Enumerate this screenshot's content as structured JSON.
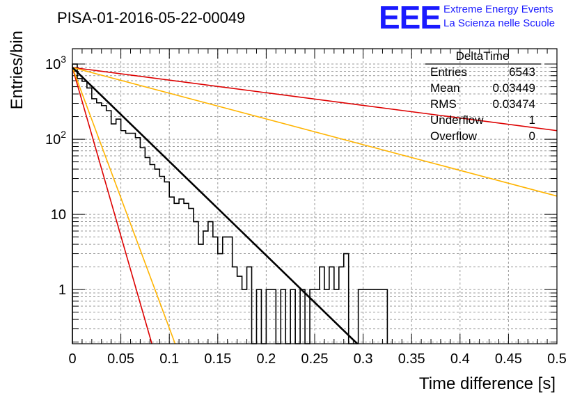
{
  "header": {
    "title": "PISA-01-2016-05-22-00049",
    "logo_text": "EEE",
    "logo_line1": "Extreme Energy Events",
    "logo_line2": "La Scienza nelle Scuole"
  },
  "stats_box": {
    "name": "DeltaTime",
    "rows": [
      {
        "label": "Entries",
        "value": "6543"
      },
      {
        "label": "Mean",
        "value": "0.03449"
      },
      {
        "label": "RMS",
        "value": "0.03474"
      },
      {
        "label": "Underflow",
        "value": "1"
      },
      {
        "label": "Overflow",
        "value": "0"
      }
    ]
  },
  "colors": {
    "histogram": "#000000",
    "fit": "#000000",
    "red_band": "#dd0000",
    "orange_band": "#ffb400",
    "grid": "#9a9a9a"
  },
  "chart_data": {
    "type": "line",
    "xlabel": "Time difference [s]",
    "ylabel": "Entries/bin",
    "xlim": [
      0,
      0.5
    ],
    "ylim": [
      0.19,
      1600
    ],
    "yscale": "log",
    "grid": true,
    "x_ticks": [
      "0",
      "0.05",
      "0.1",
      "0.15",
      "0.2",
      "0.25",
      "0.3",
      "0.35",
      "0.4",
      "0.45",
      "0.5"
    ],
    "y_ticks": [
      "1",
      "10",
      "10^2",
      "10^3"
    ],
    "histogram": {
      "bin_width": 0.005,
      "values": [
        1000,
        640,
        590,
        480,
        345,
        305,
        280,
        240,
        160,
        185,
        130,
        120,
        120,
        105,
        77,
        57,
        46,
        40,
        32,
        27,
        17,
        14,
        16,
        14,
        12,
        8,
        4,
        6,
        8,
        5,
        3,
        5,
        5,
        2,
        1.5,
        1,
        2,
        0.01,
        1,
        0.01,
        1,
        1,
        0.01,
        1,
        0.01,
        1,
        0.01,
        1,
        0.01,
        1,
        1,
        2,
        1,
        2,
        1,
        2,
        3,
        0.01,
        0.01,
        1,
        1,
        1,
        1,
        1,
        1
      ]
    },
    "series": [
      {
        "values": [
          [
            0,
            900
          ],
          [
            0.294,
            0.19
          ]
        ]
      },
      {
        "values": [
          [
            0,
            900
          ],
          [
            0.5,
            130
          ]
        ]
      },
      {
        "values": [
          [
            0,
            900
          ],
          [
            0.5,
            17.5
          ]
        ]
      },
      {
        "values": [
          [
            0,
            900
          ],
          [
            0.082,
            0.19
          ]
        ]
      },
      {
        "values": [
          [
            0,
            900
          ],
          [
            0.106,
            0.19
          ]
        ]
      }
    ]
  }
}
